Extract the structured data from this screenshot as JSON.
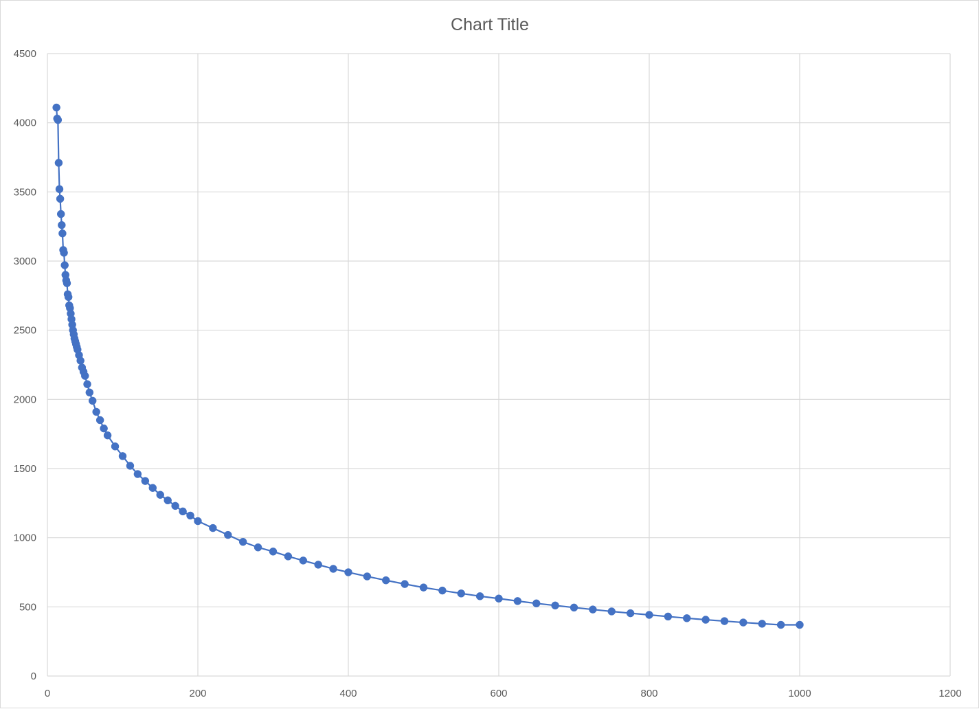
{
  "chart_data": {
    "type": "scatter",
    "title": "Chart Title",
    "xlabel": "",
    "ylabel": "",
    "xlim": [
      0,
      1200
    ],
    "ylim": [
      0,
      4500
    ],
    "x_ticks": [
      0,
      200,
      400,
      600,
      800,
      1000,
      1200
    ],
    "y_ticks": [
      0,
      500,
      1000,
      1500,
      2000,
      2500,
      3000,
      3500,
      4000,
      4500
    ],
    "grid": true,
    "legend": "none",
    "style": {
      "marker": "circle",
      "connected_with_line": true
    },
    "colors": {
      "series": "#4472c4",
      "grid": "#d9d9d9",
      "text": "#595959"
    },
    "series": [
      {
        "x": [
          12,
          13,
          14,
          15,
          16,
          17,
          18,
          19,
          20,
          21,
          22,
          23,
          24,
          25,
          26,
          27,
          28,
          29,
          30,
          31,
          32,
          33,
          34,
          35,
          36,
          37,
          38,
          39,
          40,
          42,
          44,
          46,
          48,
          50,
          53,
          56,
          60,
          65,
          70,
          75,
          80,
          90,
          100,
          110,
          120,
          130,
          140,
          150,
          160,
          170,
          180,
          190,
          200,
          220,
          240,
          260,
          280,
          300,
          320,
          340,
          360,
          380,
          400,
          425,
          450,
          475,
          500,
          525,
          550,
          575,
          600,
          625,
          650,
          675,
          700,
          725,
          750,
          775,
          800,
          825,
          850,
          875,
          900,
          925,
          950,
          975,
          1000
        ],
        "y": [
          4110,
          4030,
          4020,
          3710,
          3520,
          3450,
          3340,
          3260,
          3200,
          3080,
          3060,
          2970,
          2900,
          2860,
          2840,
          2760,
          2740,
          2680,
          2660,
          2620,
          2580,
          2540,
          2500,
          2470,
          2440,
          2420,
          2400,
          2380,
          2360,
          2320,
          2280,
          2230,
          2200,
          2170,
          2110,
          2050,
          1990,
          1910,
          1850,
          1790,
          1740,
          1660,
          1590,
          1520,
          1460,
          1410,
          1360,
          1310,
          1270,
          1230,
          1190,
          1160,
          1120,
          1070,
          1020,
          970,
          930,
          900,
          865,
          835,
          805,
          775,
          750,
          720,
          692,
          665,
          640,
          618,
          597,
          577,
          560,
          542,
          525,
          510,
          495,
          481,
          467,
          454,
          442,
          430,
          418,
          407,
          397,
          387,
          378,
          370,
          370
        ]
      }
    ]
  }
}
